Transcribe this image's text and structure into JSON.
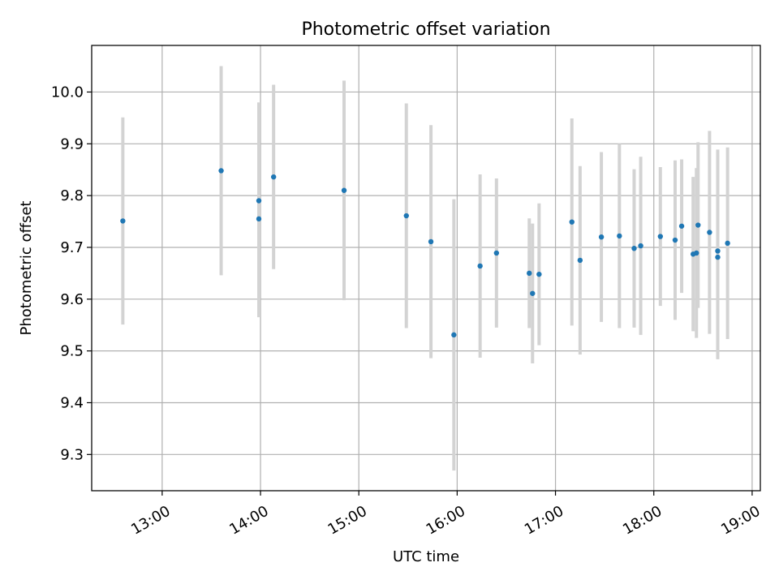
{
  "chart_data": {
    "type": "scatter",
    "title": "Photometric offset variation",
    "xlabel": "UTC time",
    "ylabel": "Photometric offset",
    "xlim": [
      "12:17",
      "19:05"
    ],
    "ylim": [
      9.23,
      10.09
    ],
    "xticks": [
      "13:00",
      "14:00",
      "15:00",
      "16:00",
      "17:00",
      "18:00",
      "19:00"
    ],
    "yticks": [
      9.3,
      9.4,
      9.5,
      9.6,
      9.7,
      9.8,
      9.9,
      10.0
    ],
    "grid": true,
    "colors": {
      "points": "#1f77b4",
      "error_bars": "#d3d3d3",
      "grid": "#b0b0b0"
    },
    "points": [
      {
        "x": "12:36",
        "y": 9.751,
        "err": 0.2
      },
      {
        "x": "13:36",
        "y": 9.848,
        "err": 0.202
      },
      {
        "x": "13:59",
        "y": 9.79,
        "err": 0.19
      },
      {
        "x": "13:59",
        "y": 9.755,
        "err": 0.19
      },
      {
        "x": "14:08",
        "y": 9.836,
        "err": 0.178
      },
      {
        "x": "14:51",
        "y": 9.81,
        "err": 0.212
      },
      {
        "x": "15:29",
        "y": 9.761,
        "err": 0.217
      },
      {
        "x": "15:44",
        "y": 9.711,
        "err": 0.225
      },
      {
        "x": "15:58",
        "y": 9.531,
        "err": 0.262
      },
      {
        "x": "16:14",
        "y": 9.664,
        "err": 0.177
      },
      {
        "x": "16:24",
        "y": 9.689,
        "err": 0.144
      },
      {
        "x": "16:44",
        "y": 9.65,
        "err": 0.106
      },
      {
        "x": "16:46",
        "y": 9.611,
        "err": 0.135
      },
      {
        "x": "16:50",
        "y": 9.648,
        "err": 0.137
      },
      {
        "x": "17:10",
        "y": 9.749,
        "err": 0.2
      },
      {
        "x": "17:15",
        "y": 9.675,
        "err": 0.182
      },
      {
        "x": "17:28",
        "y": 9.72,
        "err": 0.164
      },
      {
        "x": "17:39",
        "y": 9.722,
        "err": 0.178
      },
      {
        "x": "17:48",
        "y": 9.698,
        "err": 0.153
      },
      {
        "x": "17:52",
        "y": 9.703,
        "err": 0.172
      },
      {
        "x": "18:04",
        "y": 9.721,
        "err": 0.134
      },
      {
        "x": "18:13",
        "y": 9.714,
        "err": 0.154
      },
      {
        "x": "18:17",
        "y": 9.741,
        "err": 0.129
      },
      {
        "x": "18:24",
        "y": 9.687,
        "err": 0.149
      },
      {
        "x": "18:26",
        "y": 9.689,
        "err": 0.164
      },
      {
        "x": "18:27",
        "y": 9.743,
        "err": 0.16
      },
      {
        "x": "18:34",
        "y": 9.729,
        "err": 0.196
      },
      {
        "x": "18:39",
        "y": 9.693,
        "err": 0.196
      },
      {
        "x": "18:39",
        "y": 9.681,
        "err": 0.197
      },
      {
        "x": "18:45",
        "y": 9.708,
        "err": 0.185
      }
    ]
  }
}
